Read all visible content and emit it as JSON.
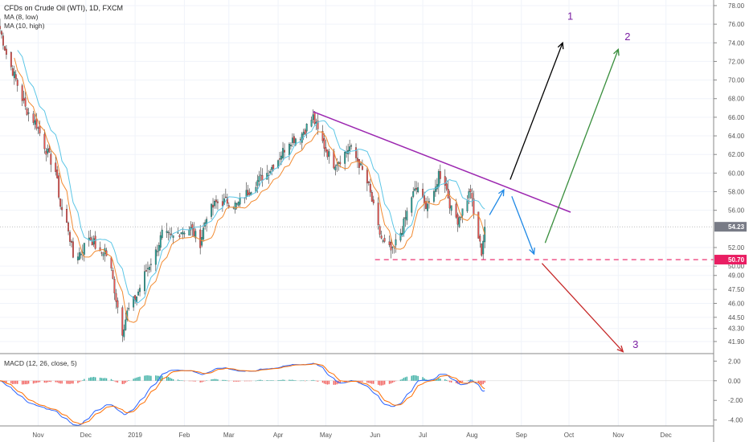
{
  "header": {
    "title": "CFDs on Crude Oil (WTI), 1D, FXCM",
    "ma1_label": "MA (8, low)",
    "ma2_label": "MA (10, high)",
    "macd_label": "MACD (12, 26, close, 5)"
  },
  "colors": {
    "bull": "#26a69a",
    "bear": "#ef5350",
    "ma_low": "#f28a30",
    "ma_high": "#5cc6e6",
    "trendline": "#9c27b0",
    "support": "#e91e63",
    "price_tag": "#787b86",
    "support_tag": "#e91e63",
    "macd_line": "#2962ff",
    "signal_line": "#ff6d00",
    "arrow_1": "#000000",
    "arrow_2": "#388e3c",
    "arrow_3": "#c62828",
    "arrow_short": "#1e88e5"
  },
  "chart_data": [
    {
      "type": "candlestick",
      "title": "CFDs on Crude Oil (WTI), 1D, FXCM",
      "x_axis": {
        "type": "date",
        "range": [
          "2018-10-08",
          "2019-12-31"
        ],
        "tick_labels": [
          {
            "label": "Nov",
            "date": "2018-11-01"
          },
          {
            "label": "Dec",
            "date": "2018-12-01"
          },
          {
            "label": "2019",
            "date": "2019-01-01"
          },
          {
            "label": "Feb",
            "date": "2019-02-01"
          },
          {
            "label": "Mar",
            "date": "2019-03-01"
          },
          {
            "label": "Apr",
            "date": "2019-04-01"
          },
          {
            "label": "May",
            "date": "2019-05-01"
          },
          {
            "label": "Jun",
            "date": "2019-06-01"
          },
          {
            "label": "Jul",
            "date": "2019-07-01"
          },
          {
            "label": "Aug",
            "date": "2019-08-01"
          },
          {
            "label": "Sep",
            "date": "2019-09-01"
          },
          {
            "label": "Oct",
            "date": "2019-10-01"
          },
          {
            "label": "Nov",
            "date": "2019-11-01"
          },
          {
            "label": "Dec",
            "date": "2019-12-01"
          }
        ]
      },
      "y_axis": {
        "range": [
          40.6,
          78.6
        ],
        "ticks": [
          "78.00",
          "76.00",
          "74.00",
          "72.00",
          "70.00",
          "68.00",
          "66.00",
          "64.00",
          "62.00",
          "60.00",
          "58.00",
          "56.00",
          "52.00",
          "50.00",
          "49.00",
          "47.50",
          "46.00",
          "44.50",
          "43.30",
          "41.90"
        ],
        "tick_values": [
          78,
          76,
          74,
          72,
          70,
          68,
          66,
          64,
          62,
          60,
          58,
          56,
          52,
          50,
          49,
          47.5,
          46,
          44.5,
          43.3,
          41.9
        ]
      },
      "price_anchors": [
        [
          "2018-10-08",
          75.5
        ],
        [
          "2018-10-12",
          72.8
        ],
        [
          "2018-10-18",
          70.0
        ],
        [
          "2018-10-24",
          67.0
        ],
        [
          "2018-10-31",
          65.2
        ],
        [
          "2018-11-06",
          62.5
        ],
        [
          "2018-11-12",
          60.2
        ],
        [
          "2018-11-15",
          56.5
        ],
        [
          "2018-11-20",
          54.0
        ],
        [
          "2018-11-23",
          51.0
        ],
        [
          "2018-11-28",
          51.5
        ],
        [
          "2018-12-03",
          53.2
        ],
        [
          "2018-12-06",
          52.5
        ],
        [
          "2018-12-10",
          51.2
        ],
        [
          "2018-12-13",
          51.8
        ],
        [
          "2018-12-17",
          49.5
        ],
        [
          "2018-12-20",
          46.5
        ],
        [
          "2018-12-24",
          43.0
        ],
        [
          "2018-12-27",
          45.0
        ],
        [
          "2019-01-02",
          46.8
        ],
        [
          "2019-01-08",
          49.5
        ],
        [
          "2019-01-14",
          51.5
        ],
        [
          "2019-01-18",
          53.5
        ],
        [
          "2019-01-24",
          53.0
        ],
        [
          "2019-01-30",
          53.8
        ],
        [
          "2019-02-05",
          54.0
        ],
        [
          "2019-02-11",
          52.5
        ],
        [
          "2019-02-15",
          55.5
        ],
        [
          "2019-02-21",
          56.8
        ],
        [
          "2019-02-28",
          57.0
        ],
        [
          "2019-03-06",
          56.5
        ],
        [
          "2019-03-12",
          57.8
        ],
        [
          "2019-03-18",
          59.0
        ],
        [
          "2019-03-25",
          60.0
        ],
        [
          "2019-04-01",
          61.5
        ],
        [
          "2019-04-08",
          63.5
        ],
        [
          "2019-04-15",
          64.0
        ],
        [
          "2019-04-23",
          66.0
        ],
        [
          "2019-04-26",
          64.5
        ],
        [
          "2019-05-01",
          62.5
        ],
        [
          "2019-05-06",
          61.0
        ],
        [
          "2019-05-10",
          61.5
        ],
        [
          "2019-05-16",
          62.8
        ],
        [
          "2019-05-22",
          61.0
        ],
        [
          "2019-05-28",
          58.5
        ],
        [
          "2019-06-03",
          54.0
        ],
        [
          "2019-06-06",
          52.5
        ],
        [
          "2019-06-12",
          51.5
        ],
        [
          "2019-06-14",
          52.5
        ],
        [
          "2019-06-18",
          54.0
        ],
        [
          "2019-06-24",
          57.5
        ],
        [
          "2019-06-28",
          58.5
        ],
        [
          "2019-07-02",
          56.5
        ],
        [
          "2019-07-08",
          57.5
        ],
        [
          "2019-07-11",
          60.0
        ],
        [
          "2019-07-15",
          59.0
        ],
        [
          "2019-07-19",
          56.0
        ],
        [
          "2019-07-23",
          55.0
        ],
        [
          "2019-07-26",
          56.0
        ],
        [
          "2019-07-31",
          58.2
        ],
        [
          "2019-08-02",
          55.5
        ],
        [
          "2019-08-07",
          51.5
        ],
        [
          "2019-08-09",
          54.23
        ]
      ],
      "last_price": 54.23,
      "last_price_label": "54.23",
      "support_level": 50.7,
      "support_label": "50.70",
      "moving_averages": [
        {
          "name": "MA (8, low)",
          "period": 8,
          "source": "low",
          "color": "#f28a30"
        },
        {
          "name": "MA (10, high)",
          "period": 10,
          "source": "high",
          "color": "#5cc6e6"
        }
      ],
      "annotations": {
        "trendline": {
          "from": [
            "2019-04-23",
            66.6
          ],
          "to": [
            "2019-10-02",
            55.8
          ],
          "color": "#9c27b0"
        },
        "support_line": {
          "from": [
            "2019-06-01",
            50.7
          ],
          "to": [
            "2019-12-31",
            50.7
          ],
          "style": "dashed",
          "color": "#e91e63"
        },
        "arrows": [
          {
            "from": [
              "2019-08-12",
              55.5
            ],
            "to": [
              "2019-08-21",
              58.2
            ],
            "color": "#1e88e5"
          },
          {
            "from": [
              "2019-08-26",
              57.5
            ],
            "to": [
              "2019-09-09",
              51.3
            ],
            "color": "#1e88e5"
          },
          {
            "from": [
              "2019-08-25",
              59.3
            ],
            "to": [
              "2019-09-27",
              74.0
            ],
            "color": "#000000",
            "label": "1"
          },
          {
            "from": [
              "2019-09-16",
              52.5
            ],
            "to": [
              "2019-11-01",
              73.3
            ],
            "color": "#388e3c",
            "label": "2"
          },
          {
            "from": [
              "2019-09-14",
              50.3
            ],
            "to": [
              "2019-11-04",
              40.8
            ],
            "color": "#c62828",
            "label": "3"
          }
        ],
        "scenario_labels": [
          {
            "text": "1",
            "at": [
              "2019-09-30",
              76.5
            ],
            "color": "#7b1fa2"
          },
          {
            "text": "2",
            "at": [
              "2019-11-05",
              74.3
            ],
            "color": "#7b1fa2"
          },
          {
            "text": "3",
            "at": [
              "2019-11-10",
              41.2
            ],
            "color": "#7b1fa2"
          }
        ]
      }
    },
    {
      "type": "line",
      "title": "MACD (12, 26, close, 5)",
      "y_axis": {
        "range": [
          -4.6,
          2.6
        ],
        "ticks": [
          "2.00",
          "0.00",
          "-2.00",
          "-4.00"
        ],
        "tick_values": [
          2,
          0,
          -2,
          -4
        ]
      },
      "series": [
        {
          "name": "MACD",
          "source": "EMA12 - EMA26 of close",
          "color": "#2962ff"
        },
        {
          "name": "Signal",
          "period": 5,
          "color": "#ff6d00"
        },
        {
          "name": "Histogram",
          "type": "bar"
        }
      ]
    }
  ]
}
